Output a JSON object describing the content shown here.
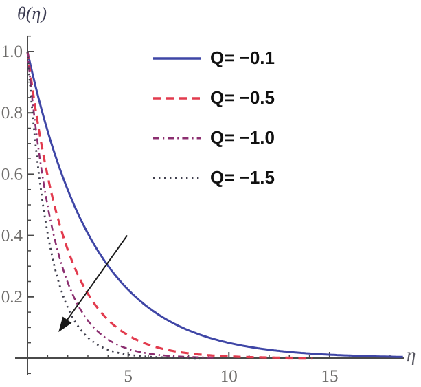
{
  "figure": {
    "background": "#ffffff"
  },
  "chart_data": {
    "type": "line",
    "title": "",
    "xlabel": "η",
    "ylabel": "θ(η)",
    "xlim": [
      0,
      18.7
    ],
    "ylim": [
      -0.05,
      1.05
    ],
    "x_tick_labels": [
      "5",
      "10",
      "15"
    ],
    "x_minor_step": 1,
    "y_tick_labels": [
      "0.2",
      "0.4",
      "0.6",
      "0.8",
      "1.0"
    ],
    "y_minor_step": 0.05,
    "grid": false,
    "legend_position": "top-center",
    "axis_color": "#4a4a4a",
    "series": [
      {
        "name": "Q= −0.1",
        "color": "#3f46a6",
        "style": "solid",
        "decay_k": 0.3,
        "eta_end": 18.7,
        "sample_points": [
          [
            0,
            1.0
          ],
          [
            1,
            0.74
          ],
          [
            2,
            0.55
          ],
          [
            3,
            0.41
          ],
          [
            5,
            0.22
          ],
          [
            7,
            0.12
          ],
          [
            10,
            0.05
          ],
          [
            15,
            0.011
          ],
          [
            18.7,
            0.004
          ]
        ]
      },
      {
        "name": "Q= −0.5",
        "color": "#e23b4e",
        "style": "dashed",
        "decay_k": 0.52,
        "eta_end": 14.2,
        "sample_points": [
          [
            0,
            1.0
          ],
          [
            1,
            0.59
          ],
          [
            2,
            0.35
          ],
          [
            3,
            0.21
          ],
          [
            5,
            0.074
          ],
          [
            7,
            0.026
          ],
          [
            10,
            0.006
          ],
          [
            14,
            0.0007
          ]
        ]
      },
      {
        "name": "Q= −1.0",
        "color": "#8c2f70",
        "style": "dashdot",
        "decay_k": 0.7,
        "eta_end": 9.3,
        "sample_points": [
          [
            0,
            1.0
          ],
          [
            1,
            0.5
          ],
          [
            2,
            0.25
          ],
          [
            3,
            0.12
          ],
          [
            5,
            0.03
          ],
          [
            7,
            0.0074
          ],
          [
            9,
            0.0018
          ]
        ]
      },
      {
        "name": "Q= −1.5",
        "color": "#3f3f4d",
        "style": "dotted",
        "decay_k": 0.9,
        "eta_end": 8.6,
        "sample_points": [
          [
            0,
            1.0
          ],
          [
            1,
            0.41
          ],
          [
            2,
            0.165
          ],
          [
            3,
            0.067
          ],
          [
            5,
            0.011
          ],
          [
            7,
            0.0018
          ],
          [
            8.5,
            0.0005
          ]
        ]
      }
    ],
    "annotation": {
      "type": "arrow",
      "from": [
        4.95,
        0.4
      ],
      "to": [
        1.54,
        0.085
      ],
      "color": "#1a1a1a"
    }
  }
}
